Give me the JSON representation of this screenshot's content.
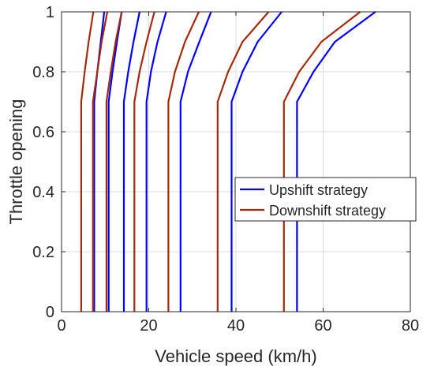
{
  "chart_data": {
    "type": "line",
    "title": "",
    "xlabel": "Vehicle speed (km/h)",
    "ylabel": "Throttle opening",
    "xlim": [
      0,
      80
    ],
    "ylim": [
      0,
      1
    ],
    "xticks": [
      0,
      20,
      40,
      60,
      80
    ],
    "yticks": [
      0,
      0.2,
      0.4,
      0.6,
      0.8,
      1
    ],
    "grid": true,
    "legend_position": "right-middle",
    "series": [
      {
        "name": "Upshift strategy",
        "color": "#0000ff",
        "curves": [
          {
            "x": [
              7.5,
              7.5,
              8.2,
              9.0,
              9.8
            ],
            "y": [
              0,
              0.7,
              0.8,
              0.9,
              1.0
            ]
          },
          {
            "x": [
              10.8,
              10.8,
              11.7,
              12.7,
              13.8
            ],
            "y": [
              0,
              0.7,
              0.8,
              0.9,
              1.0
            ]
          },
          {
            "x": [
              14.3,
              14.3,
              15.3,
              16.5,
              17.9
            ],
            "y": [
              0,
              0.7,
              0.8,
              0.9,
              1.0
            ]
          },
          {
            "x": [
              19.5,
              19.5,
              20.5,
              22.0,
              24.0
            ],
            "y": [
              0,
              0.7,
              0.8,
              0.9,
              1.0
            ]
          },
          {
            "x": [
              27.3,
              27.3,
              29.0,
              31.6,
              34.3
            ],
            "y": [
              0,
              0.7,
              0.8,
              0.9,
              1.0
            ]
          },
          {
            "x": [
              39.0,
              39.0,
              41.5,
              45.0,
              50.5
            ],
            "y": [
              0,
              0.7,
              0.8,
              0.9,
              1.0
            ]
          },
          {
            "x": [
              54.0,
              54.0,
              57.8,
              62.7,
              72.0
            ],
            "y": [
              0,
              0.7,
              0.8,
              0.9,
              1.0
            ]
          }
        ]
      },
      {
        "name": "Downshift strategy",
        "color": "#a52a0a",
        "curves": [
          {
            "x": [
              4.5,
              4.5,
              5.3,
              6.2,
              7.3
            ],
            "y": [
              0,
              0.7,
              0.8,
              0.9,
              1.0
            ]
          },
          {
            "x": [
              7.2,
              7.2,
              8.2,
              9.2,
              10.5
            ],
            "y": [
              0,
              0.7,
              0.8,
              0.9,
              1.0
            ]
          },
          {
            "x": [
              10.3,
              10.3,
              11.3,
              12.4,
              13.8
            ],
            "y": [
              0,
              0.7,
              0.8,
              0.9,
              1.0
            ]
          },
          {
            "x": [
              16.7,
              16.7,
              17.9,
              19.5,
              21.3
            ],
            "y": [
              0,
              0.7,
              0.8,
              0.9,
              1.0
            ]
          },
          {
            "x": [
              24.5,
              24.5,
              26.0,
              28.3,
              31.5
            ],
            "y": [
              0,
              0.7,
              0.8,
              0.9,
              1.0
            ]
          },
          {
            "x": [
              35.8,
              35.8,
              38.2,
              41.5,
              47.5
            ],
            "y": [
              0,
              0.7,
              0.8,
              0.9,
              1.0
            ]
          },
          {
            "x": [
              51.0,
              51.0,
              54.5,
              59.6,
              68.5
            ],
            "y": [
              0,
              0.7,
              0.8,
              0.9,
              1.0
            ]
          }
        ]
      }
    ]
  }
}
